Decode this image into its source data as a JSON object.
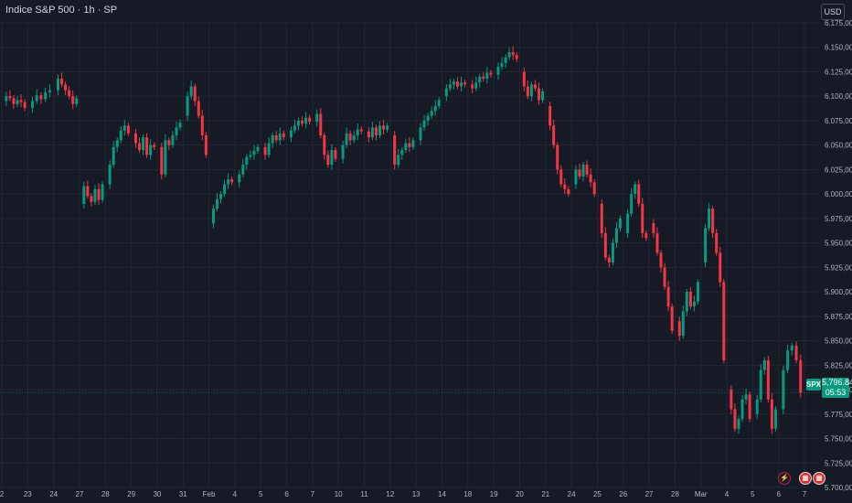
{
  "header": {
    "title": "Indice S&P 500 · 1h · SP"
  },
  "currency_button": "USD",
  "last_price": {
    "symbol": "SPX",
    "value": "5,796.84",
    "countdown": "05:53"
  },
  "colors": {
    "up": "#089981",
    "down": "#f23645",
    "grid": "#232733",
    "axis_text": "#b2b5be",
    "background": "#161a25"
  },
  "events": [
    "lightning-icon",
    "flag-icon-us",
    "flag-icon-us"
  ],
  "chart_data": {
    "type": "candlestick",
    "title": "Indice S&P 500 · 1h · SP",
    "ylim": [
      5700,
      6175
    ],
    "grid": true,
    "y_ticks": [
      "6.175,00",
      "6.150,00",
      "6.125,00",
      "6.100,00",
      "6.075,00",
      "6.050,00",
      "6.025,00",
      "6.000,00",
      "5.975,00",
      "5.950,00",
      "5.925,00",
      "5.900,00",
      "5.875,00",
      "5.850,00",
      "5.825,00",
      "5.800,00",
      "5.775,00",
      "5.750,00",
      "5.725,00",
      "5.700,00"
    ],
    "x_ticks": [
      "2",
      "23",
      "24",
      "27",
      "28",
      "29",
      "30",
      "31",
      "Feb",
      "4",
      "5",
      "6",
      "7",
      "10",
      "11",
      "12",
      "13",
      "14",
      "18",
      "19",
      "20",
      "21",
      "24",
      "25",
      "26",
      "27",
      "28",
      "Mar",
      "4",
      "5",
      "6",
      "7"
    ],
    "last_value": 5796.84,
    "series": [
      {
        "day": "Jan 22",
        "close_path": [
          6095,
          6100,
          6098,
          6092,
          6096,
          6094,
          6088
        ]
      },
      {
        "day": "Jan 23",
        "close_path": [
          6088,
          6095,
          6101,
          6097,
          6104,
          6106
        ]
      },
      {
        "day": "Jan 24",
        "close_path": [
          6106,
          6118,
          6112,
          6106,
          6100,
          6092,
          6098
        ]
      },
      {
        "day": "Jan 27",
        "close_path": [
          5990,
          6008,
          5998,
          5992,
          6005,
          5994,
          6010
        ]
      },
      {
        "day": "Jan 28",
        "close_path": [
          6010,
          6030,
          6048,
          6055,
          6065,
          6070,
          6062
        ]
      },
      {
        "day": "Jan 29",
        "close_path": [
          6062,
          6052,
          6045,
          6058,
          6040,
          6050,
          6048
        ]
      },
      {
        "day": "Jan 30",
        "close_path": [
          6048,
          6020,
          6055,
          6050,
          6060,
          6068,
          6073
        ]
      },
      {
        "day": "Jan 31",
        "close_path": [
          6080,
          6100,
          6110,
          6095,
          6080,
          6060,
          6040
        ]
      },
      {
        "day": "Feb 3",
        "close_path": [
          5970,
          5985,
          5995,
          6000,
          6010,
          6015,
          6012
        ]
      },
      {
        "day": "Feb 4",
        "close_path": [
          6012,
          6020,
          6030,
          6038,
          6040,
          6044,
          6048
        ]
      },
      {
        "day": "Feb 5",
        "close_path": [
          6048,
          6040,
          6052,
          6060,
          6055,
          6062,
          6058
        ]
      },
      {
        "day": "Feb 6",
        "close_path": [
          6058,
          6065,
          6070,
          6075,
          6072,
          6078,
          6074
        ]
      },
      {
        "day": "Feb 7",
        "close_path": [
          6074,
          6082,
          6060,
          6040,
          6030,
          6045,
          6036
        ]
      },
      {
        "day": "Feb 10",
        "close_path": [
          6036,
          6050,
          6062,
          6055,
          6060,
          6066,
          6064
        ]
      },
      {
        "day": "Feb 11",
        "close_path": [
          6064,
          6058,
          6068,
          6060,
          6070,
          6066,
          6070
        ]
      },
      {
        "day": "Feb 12",
        "close_path": [
          6060,
          6030,
          6040,
          6045,
          6052,
          6048,
          6055
        ]
      },
      {
        "day": "Feb 13",
        "close_path": [
          6055,
          6068,
          6075,
          6080,
          6085,
          6090,
          6096
        ]
      },
      {
        "day": "Feb 14",
        "close_path": [
          6100,
          6108,
          6112,
          6115,
          6110,
          6114,
          6112
        ]
      },
      {
        "day": "Feb 18",
        "close_path": [
          6112,
          6108,
          6114,
          6120,
          6118,
          6124,
          6122
        ]
      },
      {
        "day": "Feb 19",
        "close_path": [
          6122,
          6130,
          6134,
          6140,
          6145,
          6142,
          6138
        ]
      },
      {
        "day": "Feb 20",
        "close_path": [
          6125,
          6110,
          6100,
          6112,
          6108,
          6096,
          6105
        ]
      },
      {
        "day": "Feb 21",
        "close_path": [
          6090,
          6070,
          6050,
          6025,
          6010,
          6005,
          6000
        ]
      },
      {
        "day": "Feb 24",
        "close_path": [
          6010,
          6025,
          6018,
          6030,
          6020,
          6012,
          6000
        ]
      },
      {
        "day": "Feb 25",
        "close_path": [
          5990,
          5960,
          5935,
          5930,
          5950,
          5965,
          5975
        ]
      },
      {
        "day": "Feb 26",
        "close_path": [
          5960,
          5980,
          6000,
          6010,
          5990,
          5960,
          5955
        ]
      },
      {
        "day": "Feb 27",
        "close_path": [
          5970,
          5960,
          5940,
          5925,
          5905,
          5885,
          5860
        ]
      },
      {
        "day": "Feb 28",
        "close_path": [
          5870,
          5855,
          5880,
          5900,
          5885,
          5890,
          5910
        ]
      },
      {
        "day": "Mar 3",
        "close_path": [
          5930,
          5965,
          5985,
          5960,
          5940,
          5910,
          5830
        ]
      },
      {
        "day": "Mar 4",
        "close_path": [
          5800,
          5780,
          5760,
          5770,
          5790,
          5795,
          5770
        ]
      },
      {
        "day": "Mar 5",
        "close_path": [
          5775,
          5790,
          5820,
          5830,
          5790,
          5760,
          5780
        ]
      },
      {
        "day": "Mar 6",
        "close_path": [
          5780,
          5820,
          5840,
          5845,
          5830,
          5796.84
        ]
      }
    ]
  }
}
